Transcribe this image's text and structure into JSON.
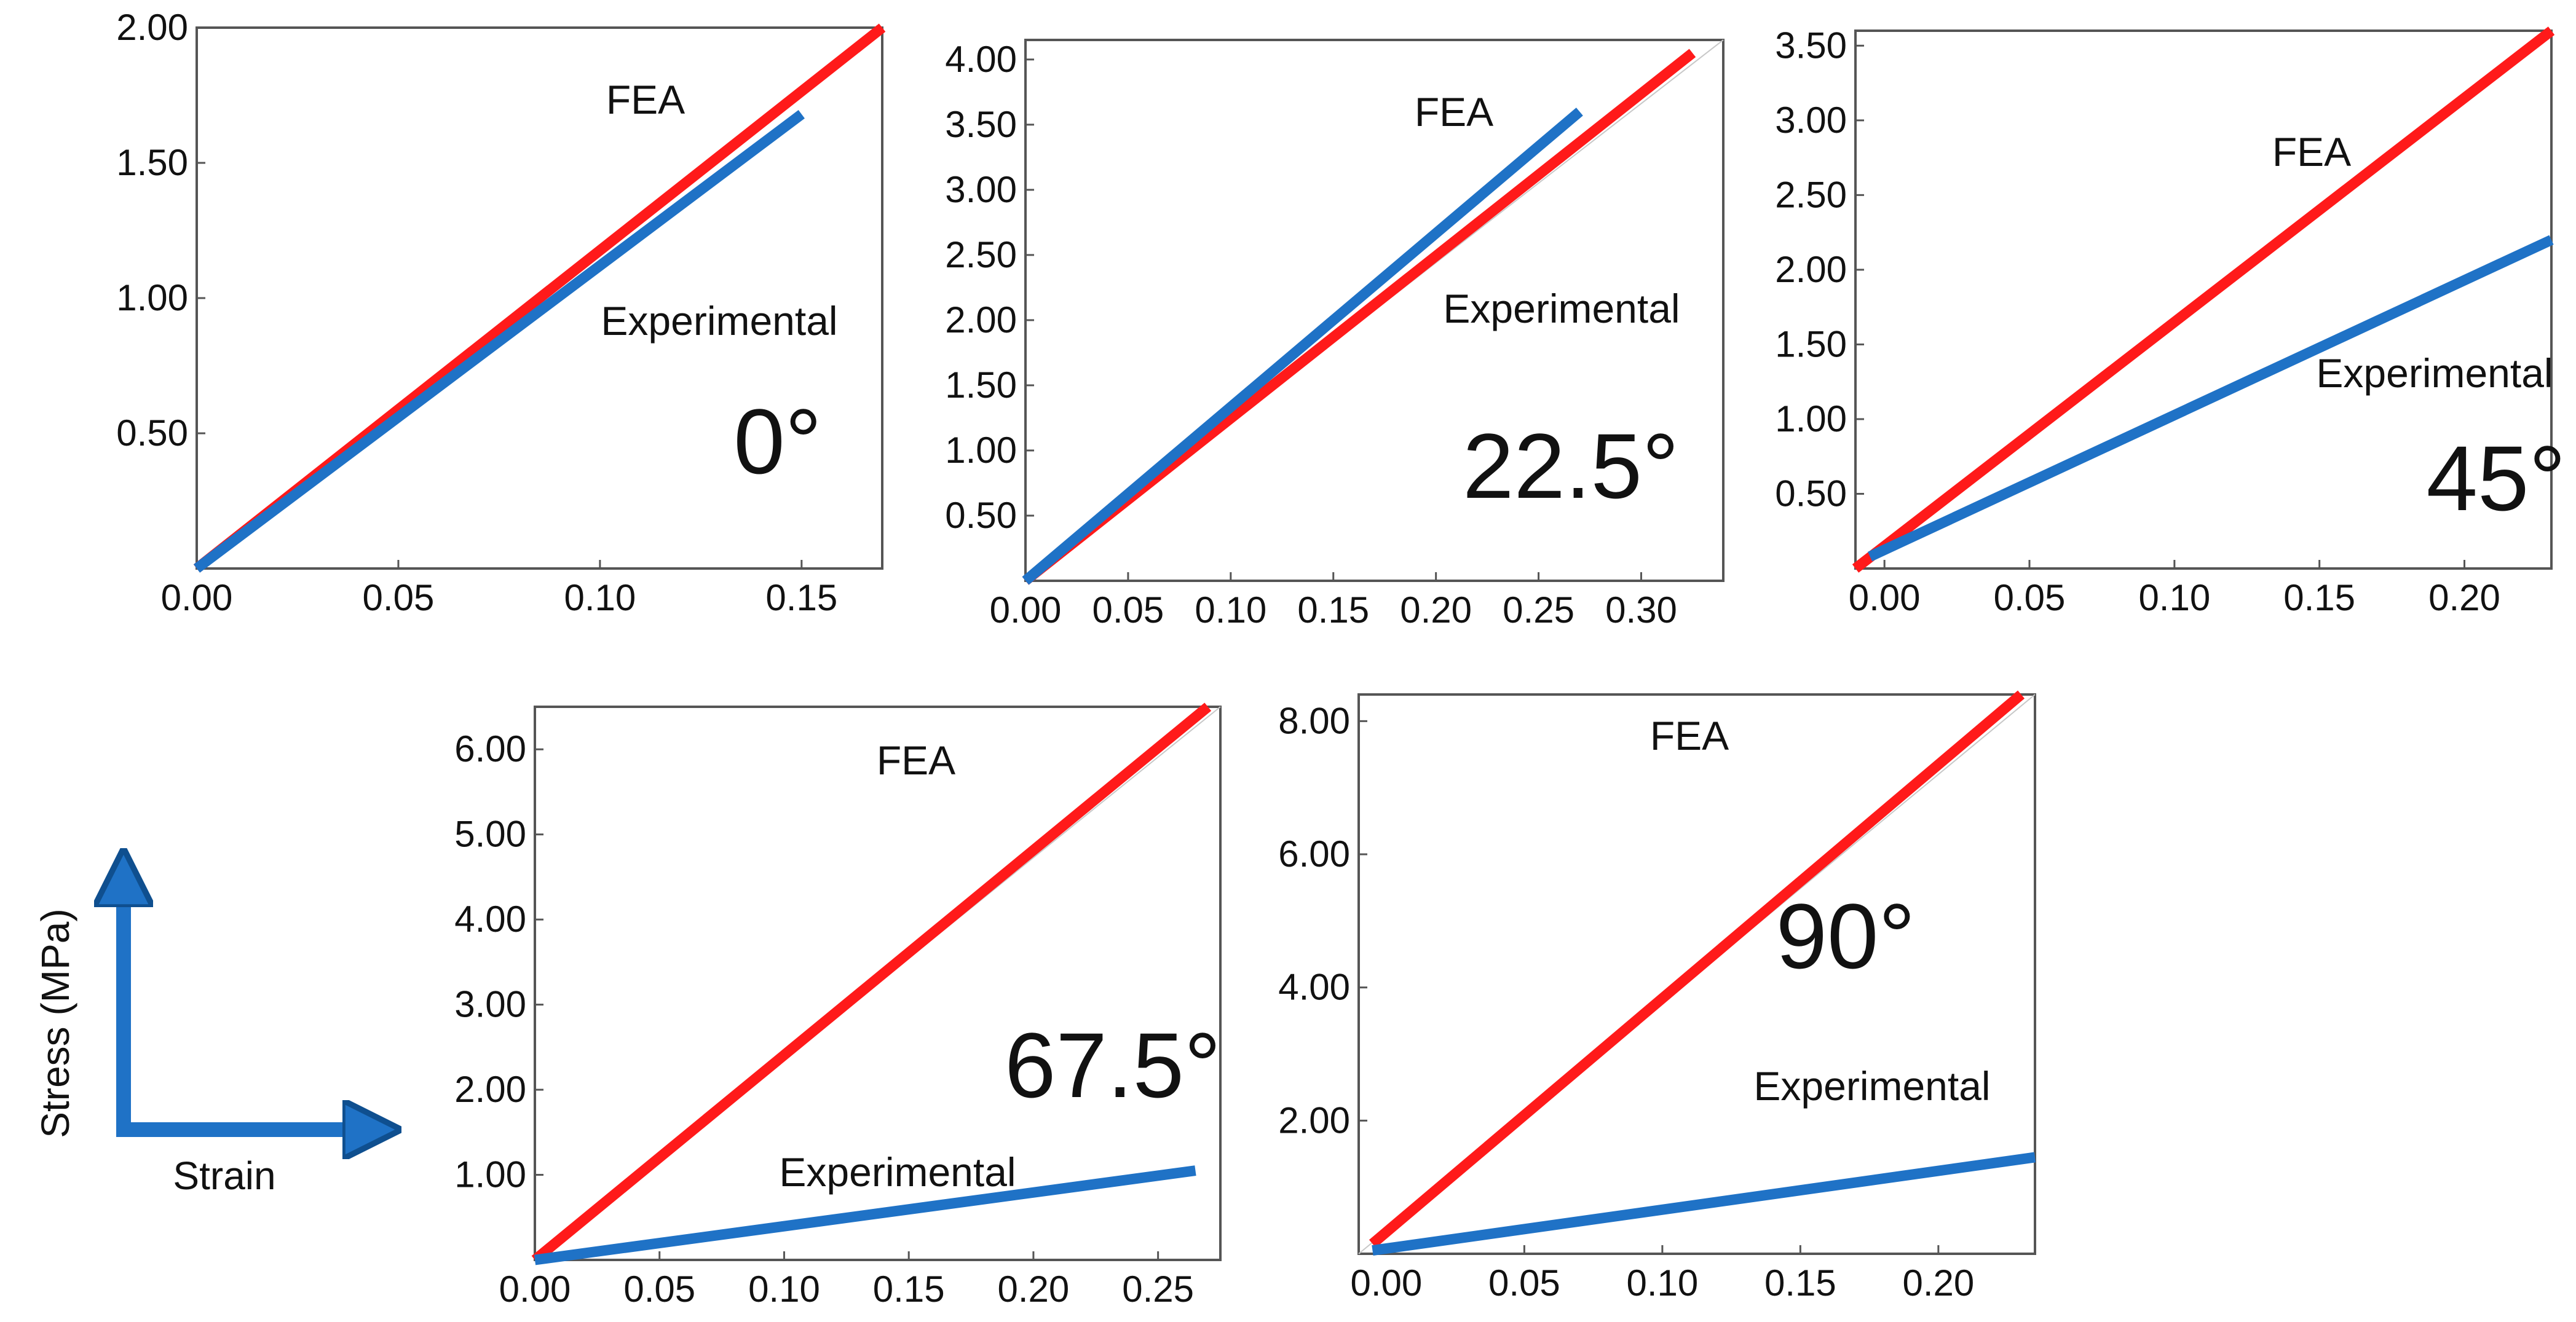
{
  "figure": {
    "legend": {
      "y_label": "Stress (MPa)",
      "x_label": "Strain"
    }
  },
  "chart_data": [
    {
      "type": "line",
      "angle_label": "0°",
      "xlim": [
        0,
        0.17
      ],
      "ylim": [
        0,
        2.0
      ],
      "x_ticks": [
        0.0,
        0.05,
        0.1,
        0.15
      ],
      "x_tick_labels": [
        "0.00",
        "0.05",
        "0.10",
        "0.15"
      ],
      "y_ticks": [
        0.5,
        1.0,
        1.5,
        2.0
      ],
      "y_tick_labels": [
        "0.50",
        "1.00",
        "1.50",
        "2.00"
      ],
      "annotations": [
        "FEA",
        "Experimental"
      ],
      "series": [
        {
          "name": "FEA",
          "color": "#ff1a1a",
          "x": [
            0,
            0.17
          ],
          "y": [
            0,
            2.0
          ]
        },
        {
          "name": "Experimental",
          "color": "#1f72c6",
          "x": [
            0,
            0.15
          ],
          "y": [
            0,
            1.68
          ]
        }
      ]
    },
    {
      "type": "line",
      "angle_label": "22.5°",
      "xlim": [
        0,
        0.34
      ],
      "ylim": [
        0,
        4.15
      ],
      "x_ticks": [
        0.0,
        0.05,
        0.1,
        0.15,
        0.2,
        0.25,
        0.3
      ],
      "x_tick_labels": [
        "0.00",
        "0.05",
        "0.10",
        "0.15",
        "0.20",
        "0.25",
        "0.30"
      ],
      "y_ticks": [
        0.5,
        1.0,
        1.5,
        2.0,
        2.5,
        3.0,
        3.5,
        4.0
      ],
      "y_tick_labels": [
        "0.50",
        "1.00",
        "1.50",
        "2.00",
        "2.50",
        "3.00",
        "3.50",
        "4.00"
      ],
      "annotations": [
        "FEA",
        "Experimental"
      ],
      "series": [
        {
          "name": "FEA",
          "color": "#ff1a1a",
          "x": [
            0,
            0.325
          ],
          "y": [
            0,
            4.05
          ]
        },
        {
          "name": "Experimental",
          "color": "#1f72c6",
          "x": [
            0,
            0.27
          ],
          "y": [
            0,
            3.6
          ]
        }
      ]
    },
    {
      "type": "line",
      "angle_label": "45°",
      "xlim": [
        -0.01,
        0.23
      ],
      "ylim": [
        0,
        3.6
      ],
      "x_ticks": [
        0.0,
        0.05,
        0.1,
        0.15,
        0.2
      ],
      "x_tick_labels": [
        "0.00",
        "0.05",
        "0.10",
        "0.15",
        "0.20"
      ],
      "y_ticks": [
        0.5,
        1.0,
        1.5,
        2.0,
        2.5,
        3.0,
        3.5
      ],
      "y_tick_labels": [
        "0.50",
        "1.00",
        "1.50",
        "2.00",
        "2.50",
        "3.00",
        "3.50"
      ],
      "annotations": [
        "FEA",
        "Experimental"
      ],
      "series": [
        {
          "name": "FEA",
          "color": "#ff1a1a",
          "x": [
            -0.01,
            0.23
          ],
          "y": [
            0,
            3.6
          ]
        },
        {
          "name": "Experimental",
          "color": "#1f72c6",
          "x": [
            -0.005,
            0.23
          ],
          "y": [
            0.08,
            2.2
          ]
        }
      ]
    },
    {
      "type": "line",
      "angle_label": "67.5°",
      "xlim": [
        0,
        0.275
      ],
      "ylim": [
        0,
        6.5
      ],
      "x_ticks": [
        0.0,
        0.05,
        0.1,
        0.15,
        0.2,
        0.25
      ],
      "x_tick_labels": [
        "0.00",
        "0.05",
        "0.10",
        "0.15",
        "0.20",
        "0.25"
      ],
      "y_ticks": [
        1.0,
        2.0,
        3.0,
        4.0,
        5.0,
        6.0
      ],
      "y_tick_labels": [
        "1.00",
        "2.00",
        "3.00",
        "4.00",
        "5.00",
        "6.00"
      ],
      "annotations": [
        "FEA",
        "Experimental"
      ],
      "series": [
        {
          "name": "FEA",
          "color": "#ff1a1a",
          "x": [
            0,
            0.27
          ],
          "y": [
            0,
            6.5
          ]
        },
        {
          "name": "Experimental",
          "color": "#1f72c6",
          "x": [
            0,
            0.265
          ],
          "y": [
            0,
            1.05
          ]
        }
      ]
    },
    {
      "type": "line",
      "angle_label": "90°",
      "xlim": [
        -0.01,
        0.235
      ],
      "ylim": [
        0,
        8.4
      ],
      "x_ticks": [
        0.0,
        0.05,
        0.1,
        0.15,
        0.2
      ],
      "x_tick_labels": [
        "0.00",
        "0.05",
        "0.10",
        "0.15",
        "0.20"
      ],
      "y_ticks": [
        2.0,
        4.0,
        6.0,
        8.0
      ],
      "y_tick_labels": [
        "2.00",
        "4.00",
        "6.00",
        "8.00"
      ],
      "annotations": [
        "FEA",
        "Experimental"
      ],
      "series": [
        {
          "name": "FEA",
          "color": "#ff1a1a",
          "x": [
            -0.005,
            0.23
          ],
          "y": [
            0.15,
            8.4
          ]
        },
        {
          "name": "Experimental",
          "color": "#1f72c6",
          "x": [
            -0.005,
            0.235
          ],
          "y": [
            0.05,
            1.45
          ]
        }
      ]
    }
  ]
}
